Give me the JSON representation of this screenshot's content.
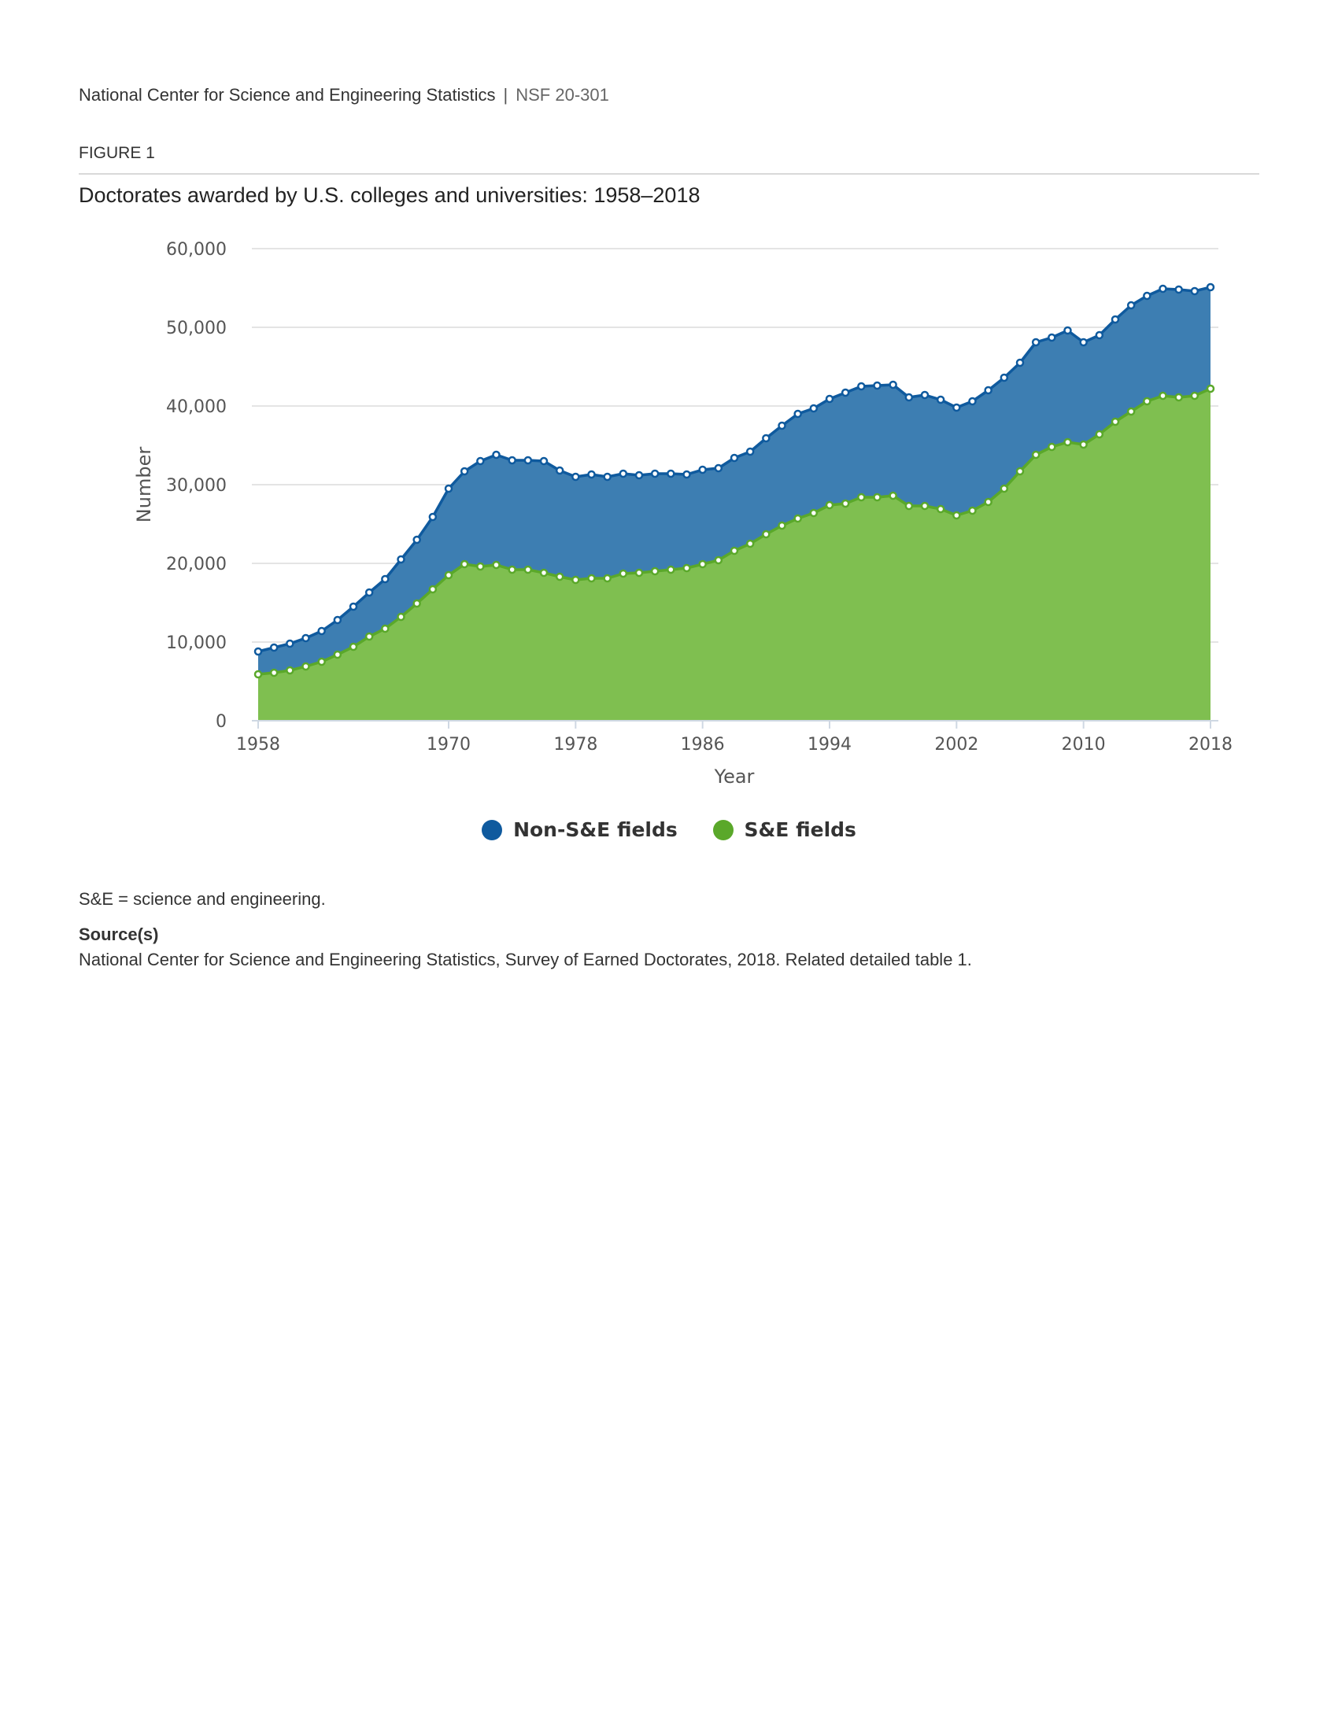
{
  "header": {
    "org": "National Center for Science and Engineering Statistics",
    "separator": "|",
    "report": "NSF 20-301"
  },
  "figure": {
    "label": "FIGURE 1",
    "title": "Doctorates awarded by U.S. colleges and universities: 1958–2018"
  },
  "colors": {
    "non_se": "#0f5a9e",
    "non_se_fill": "#3d7eb2",
    "se": "#5aa82a",
    "se_fill": "#7fbf50",
    "grid": "#e4e4e4"
  },
  "chart_data": {
    "type": "area",
    "stacked": true,
    "xlabel": "Year",
    "ylabel": "Number",
    "ylim": [
      0,
      60000
    ],
    "yticks": [
      0,
      10000,
      20000,
      30000,
      40000,
      50000,
      60000
    ],
    "ytick_labels": [
      "0",
      "10,000",
      "20,000",
      "30,000",
      "40,000",
      "50,000",
      "60,000"
    ],
    "xticks": [
      1958,
      1970,
      1978,
      1986,
      1994,
      2002,
      2010,
      2018
    ],
    "grid": true,
    "legend_position": "bottom-center",
    "x": [
      1958,
      1959,
      1960,
      1961,
      1962,
      1963,
      1964,
      1965,
      1966,
      1967,
      1968,
      1969,
      1970,
      1971,
      1972,
      1973,
      1974,
      1975,
      1976,
      1977,
      1978,
      1979,
      1980,
      1981,
      1982,
      1983,
      1984,
      1985,
      1986,
      1987,
      1988,
      1989,
      1990,
      1991,
      1992,
      1993,
      1994,
      1995,
      1996,
      1997,
      1998,
      1999,
      2000,
      2001,
      2002,
      2003,
      2004,
      2005,
      2006,
      2007,
      2008,
      2009,
      2010,
      2011,
      2012,
      2013,
      2014,
      2015,
      2016,
      2017,
      2018
    ],
    "series": [
      {
        "name": "S&E fields",
        "values": [
          5900,
          6100,
          6400,
          6900,
          7500,
          8400,
          9400,
          10700,
          11700,
          13200,
          14900,
          16700,
          18500,
          19900,
          19600,
          19800,
          19200,
          19200,
          18800,
          18300,
          17900,
          18100,
          18100,
          18700,
          18800,
          19000,
          19200,
          19400,
          19900,
          20400,
          21600,
          22500,
          23700,
          24800,
          25700,
          26400,
          27400,
          27600,
          28400,
          28400,
          28600,
          27300,
          27300,
          26900,
          26100,
          26700,
          27800,
          29500,
          31700,
          33800,
          34800,
          35400,
          35100,
          36400,
          38000,
          39300,
          40600,
          41300,
          41100,
          41300,
          42200
        ]
      },
      {
        "name": "Non-S&E fields",
        "values": [
          2900,
          3200,
          3400,
          3600,
          3900,
          4400,
          5100,
          5600,
          6300,
          7300,
          8100,
          9200,
          11000,
          11800,
          13400,
          14000,
          13900,
          13900,
          14200,
          13500,
          13100,
          13200,
          12900,
          12700,
          12400,
          12400,
          12200,
          11900,
          12000,
          11700,
          11800,
          11700,
          12200,
          12700,
          13300,
          13300,
          13500,
          14100,
          14100,
          14200,
          14100,
          13800,
          14100,
          13900,
          13700,
          13900,
          14200,
          14100,
          13800,
          14300,
          13900,
          14200,
          13000,
          12600,
          13000,
          13500,
          13400,
          13600,
          13700,
          13300,
          12900
        ]
      }
    ],
    "totals": [
      8800,
      9300,
      9800,
      10500,
      11400,
      12800,
      14500,
      16300,
      18000,
      20500,
      23000,
      25900,
      29500,
      31700,
      33000,
      33800,
      33100,
      33100,
      33000,
      31800,
      31000,
      31300,
      31000,
      31400,
      31200,
      31400,
      31400,
      31300,
      31900,
      32100,
      33400,
      34200,
      35900,
      37500,
      39000,
      39700,
      40900,
      41700,
      42500,
      42600,
      42700,
      41100,
      41400,
      40800,
      39800,
      40600,
      42000,
      43600,
      45500,
      48100,
      48700,
      49600,
      48100,
      49000,
      51000,
      52800,
      54000,
      54900,
      54800,
      54600,
      55100
    ]
  },
  "legend": {
    "non_se_label": "Non-S&E fields",
    "se_label": "S&E fields"
  },
  "notes": {
    "abbrev": "S&E = science and engineering.",
    "source_heading": "Source(s)",
    "source_text": "National Center for Science and Engineering Statistics, Survey of Earned Doctorates, 2018. Related detailed table 1."
  }
}
